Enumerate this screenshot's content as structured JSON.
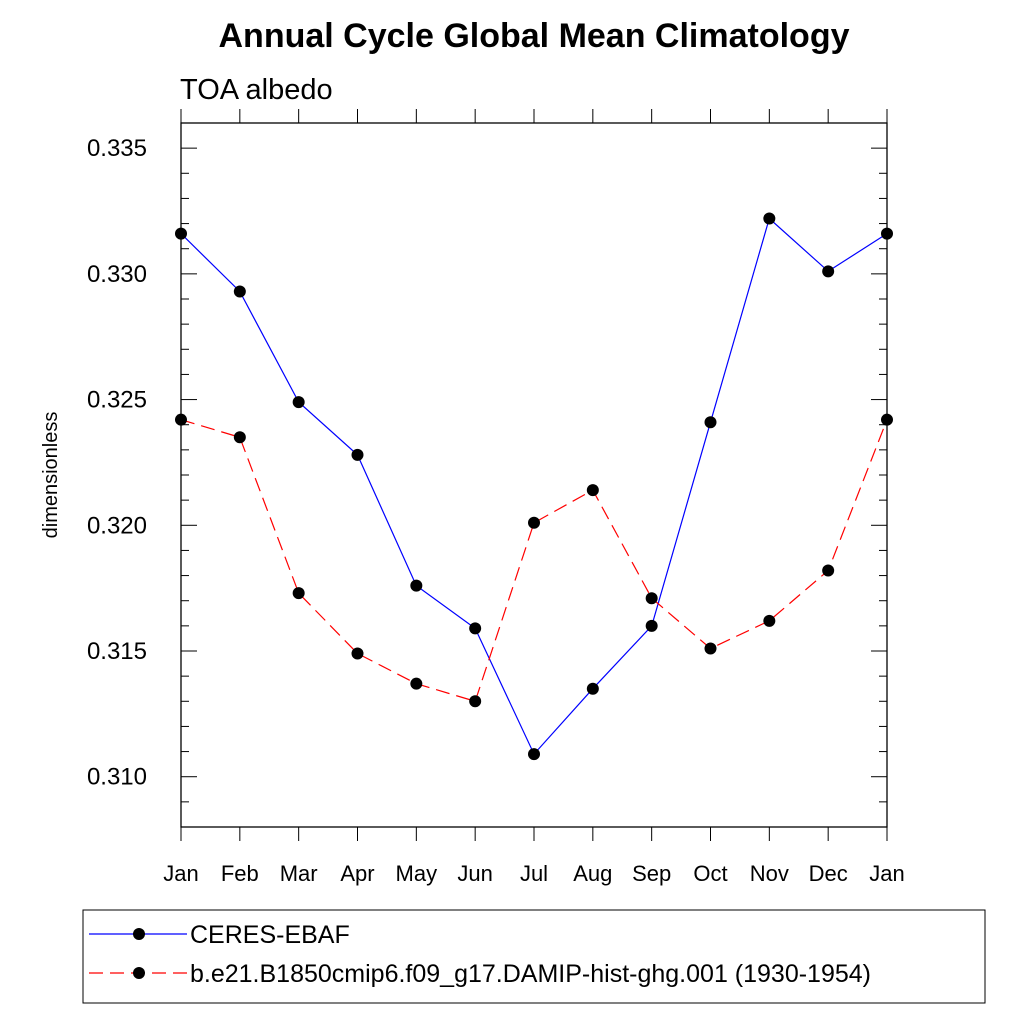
{
  "chart_data": {
    "type": "line",
    "title": "Annual Cycle Global Mean Climatology",
    "subtitle": "TOA albedo",
    "xlabel": "",
    "ylabel": "dimensionless",
    "categories": [
      "Jan",
      "Feb",
      "Mar",
      "Apr",
      "May",
      "Jun",
      "Jul",
      "Aug",
      "Sep",
      "Oct",
      "Nov",
      "Dec",
      "Jan"
    ],
    "ylim": [
      0.308,
      0.336
    ],
    "yticks": [
      "0.310",
      "0.315",
      "0.320",
      "0.325",
      "0.330",
      "0.335"
    ],
    "grid": false,
    "legend_position": "bottom",
    "series": [
      {
        "name": "CERES-EBAF",
        "color": "#0000ff",
        "dash": "solid",
        "marker": "filled-circle",
        "values": [
          0.3316,
          0.3293,
          0.3249,
          0.3228,
          0.3176,
          0.3159,
          0.3109,
          0.3135,
          0.316,
          0.3241,
          0.3322,
          0.3301,
          0.3316
        ]
      },
      {
        "name": "b.e21.B1850cmip6.f09_g17.DAMIP-hist-ghg.001 (1930-1954)",
        "color": "#ff0000",
        "dash": "dashed",
        "marker": "filled-circle",
        "values": [
          0.3242,
          0.3235,
          0.3173,
          0.3149,
          0.3137,
          0.313,
          0.3201,
          0.3214,
          0.3171,
          0.3151,
          0.3162,
          0.3182,
          0.3242
        ]
      }
    ]
  }
}
